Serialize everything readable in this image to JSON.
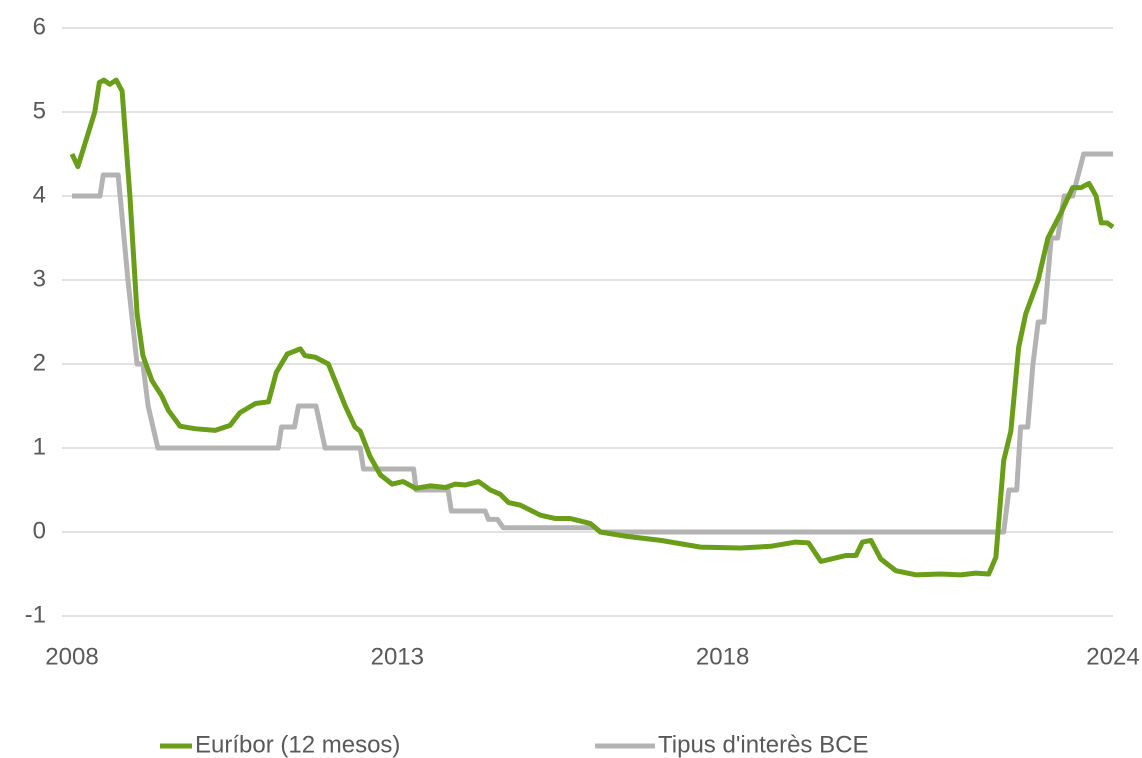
{
  "chart_data": {
    "type": "line",
    "ylim": [
      -1,
      6
    ],
    "yticks": [
      -1,
      0,
      1,
      2,
      3,
      4,
      5,
      6
    ],
    "xlim": [
      2008,
      2024
    ],
    "xticks": [
      2008,
      2013,
      2018,
      2024
    ],
    "grid": true,
    "legend": "bottom",
    "series": [
      {
        "name": "Euríbor (12 mesos)",
        "color": "#6a9e1a",
        "x": [
          2008.0,
          2008.09,
          2008.35,
          2008.42,
          2008.49,
          2008.58,
          2008.68,
          2008.77,
          2008.89,
          2009.0,
          2009.09,
          2009.23,
          2009.38,
          2009.48,
          2009.66,
          2009.89,
          2010.2,
          2010.43,
          2010.58,
          2010.82,
          2011.02,
          2011.14,
          2011.31,
          2011.51,
          2011.58,
          2011.74,
          2011.94,
          2012.2,
          2012.35,
          2012.43,
          2012.58,
          2012.74,
          2012.92,
          2013.09,
          2013.28,
          2013.51,
          2013.74,
          2013.89,
          2014.05,
          2014.25,
          2014.43,
          2014.58,
          2014.71,
          2014.89,
          2015.2,
          2015.43,
          2015.66,
          2015.97,
          2016.12,
          2016.51,
          2017.05,
          2017.66,
          2018.28,
          2018.74,
          2019.12,
          2019.32,
          2019.51,
          2019.89,
          2020.05,
          2020.15,
          2020.28,
          2020.43,
          2020.66,
          2020.97,
          2021.35,
          2021.66,
          2021.89,
          2022.09,
          2022.2,
          2022.32,
          2022.43,
          2022.55,
          2022.66,
          2022.85,
          2023.0,
          2023.2,
          2023.38,
          2023.51,
          2023.63,
          2023.74,
          2023.82,
          2023.91,
          2024.0
        ],
        "values": [
          4.5,
          4.35,
          5.0,
          5.35,
          5.38,
          5.33,
          5.38,
          5.25,
          4.0,
          2.6,
          2.1,
          1.8,
          1.62,
          1.45,
          1.26,
          1.23,
          1.21,
          1.27,
          1.42,
          1.53,
          1.55,
          1.9,
          2.12,
          2.18,
          2.1,
          2.08,
          2.0,
          1.5,
          1.25,
          1.2,
          0.9,
          0.68,
          0.57,
          0.6,
          0.52,
          0.55,
          0.53,
          0.57,
          0.56,
          0.6,
          0.5,
          0.45,
          0.35,
          0.32,
          0.2,
          0.16,
          0.16,
          0.1,
          0.0,
          -0.05,
          -0.1,
          -0.18,
          -0.19,
          -0.17,
          -0.12,
          -0.13,
          -0.35,
          -0.28,
          -0.28,
          -0.12,
          -0.1,
          -0.32,
          -0.46,
          -0.51,
          -0.5,
          -0.51,
          -0.49,
          -0.5,
          -0.3,
          0.85,
          1.2,
          2.2,
          2.6,
          3.0,
          3.5,
          3.8,
          4.1,
          4.1,
          4.15,
          4.0,
          3.68,
          3.68,
          3.63
        ]
      },
      {
        "name": "Tipus d'interès BCE",
        "color": "#b3b3b3",
        "x": [
          2008.0,
          2008.43,
          2008.48,
          2008.71,
          2008.86,
          2009.0,
          2009.09,
          2009.17,
          2009.32,
          2011.17,
          2011.22,
          2011.42,
          2011.48,
          2011.75,
          2011.89,
          2012.43,
          2012.48,
          2013.25,
          2013.29,
          2013.78,
          2013.83,
          2014.35,
          2014.4,
          2014.54,
          2014.63,
          2016.05,
          2016.12,
          2022.32,
          2022.4,
          2022.52,
          2022.58,
          2022.69,
          2022.77,
          2022.85,
          2022.94,
          2023.05,
          2023.15,
          2023.25,
          2023.38,
          2023.55,
          2024.0
        ],
        "values": [
          4.0,
          4.0,
          4.25,
          4.25,
          3.0,
          2.0,
          2.0,
          1.5,
          1.0,
          1.0,
          1.25,
          1.25,
          1.5,
          1.5,
          1.0,
          1.0,
          0.75,
          0.75,
          0.5,
          0.5,
          0.25,
          0.25,
          0.15,
          0.15,
          0.05,
          0.05,
          0.0,
          0.0,
          0.5,
          0.5,
          1.25,
          1.25,
          2.0,
          2.5,
          2.5,
          3.5,
          3.5,
          4.0,
          4.0,
          4.5,
          4.5
        ]
      }
    ]
  }
}
